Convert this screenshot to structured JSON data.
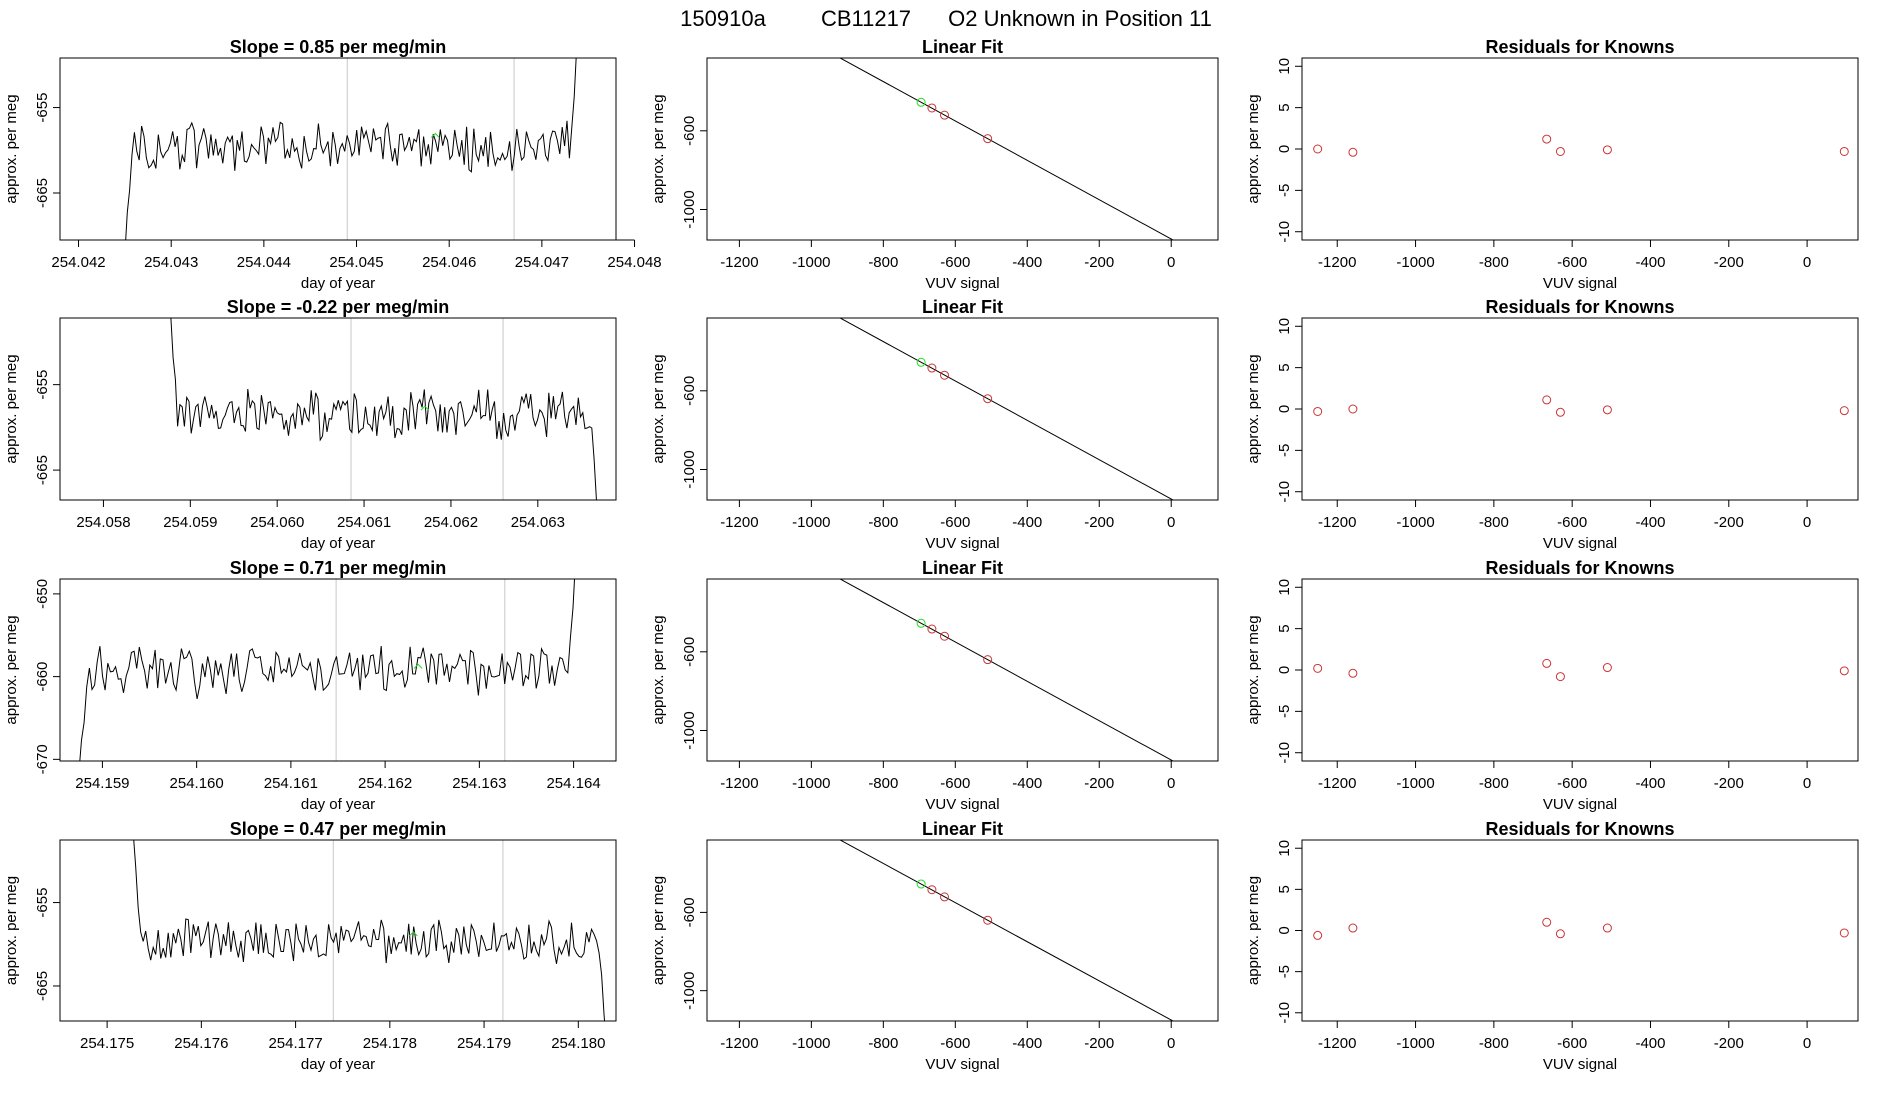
{
  "header": {
    "run_id": "150910a",
    "cylinder": "CB11217",
    "description": "O2 Unknown in Position  11"
  },
  "colors": {
    "trace": "#000000",
    "known_point": "#cc3333",
    "unknown_point": "#22dd22",
    "marker_line": "#c8c8c8"
  },
  "chart_data": [
    {
      "type": "line",
      "panel": "drift",
      "title": "Slope =  0.85  per meg/min",
      "xlabel": "day of year",
      "ylabel": "approx. per meg",
      "xlim": [
        254.0418,
        254.0478
      ],
      "ylim": [
        -670.5,
        -649.2
      ],
      "xticks": [
        "254.042",
        "254.043",
        "254.044",
        "254.045",
        "254.046",
        "254.047",
        "254.048"
      ],
      "yticks": [
        "-665",
        "-655"
      ],
      "marker_lines": [
        254.0449,
        254.0467
      ],
      "trace_start": 254.0425,
      "trace_end": 254.0474,
      "trace_level": -659.5,
      "trace_noise": 2.5,
      "trace_head": [
        -672,
        -668,
        -664,
        -661
      ],
      "trace_tail": [
        -658,
        -654,
        -648,
        -640
      ],
      "unknown_point": {
        "x": 254.04585,
        "y": -658.5
      }
    },
    {
      "type": "scatter",
      "panel": "linear-fit",
      "title": "Linear Fit",
      "xlabel": "VUV signal",
      "ylabel": "approx. per meg",
      "xlim": [
        -1290,
        130
      ],
      "ylim": [
        -1155,
        -230
      ],
      "xticks": [
        "-1200",
        "-1000",
        "-800",
        "-600",
        "-400",
        "-200",
        "0"
      ],
      "yticks": [
        "-1000",
        "-600"
      ],
      "fit_line": {
        "slope": -1.0,
        "intercept": -1150
      },
      "known_points": [
        {
          "x": -1250,
          "y": -1.5
        },
        {
          "x": -1160,
          "y": -1.0
        },
        {
          "x": -665,
          "y": 1.0
        },
        {
          "x": -630,
          "y": -0.5
        },
        {
          "x": -510,
          "y": 0.0
        },
        {
          "x": 95,
          "y": -0.5
        }
      ],
      "unknown_point": {
        "x": -695,
        "y": 0.0
      }
    },
    {
      "type": "scatter",
      "panel": "residuals",
      "title": "Residuals for Knowns",
      "xlabel": "VUV signal",
      "ylabel": "approx. per meg",
      "xlim": [
        -1290,
        130
      ],
      "ylim": [
        -11,
        11
      ],
      "xticks": [
        "-1200",
        "-1000",
        "-800",
        "-600",
        "-400",
        "-200",
        "0"
      ],
      "yticks": [
        "-10",
        "-5",
        "0",
        "5",
        "10"
      ],
      "points": [
        {
          "x": -1250,
          "y": 0.0
        },
        {
          "x": -1160,
          "y": -0.4
        },
        {
          "x": -665,
          "y": 1.2
        },
        {
          "x": -630,
          "y": -0.3
        },
        {
          "x": -510,
          "y": -0.1
        },
        {
          "x": 95,
          "y": -0.3
        }
      ]
    },
    {
      "type": "line",
      "panel": "drift",
      "title": "Slope =  -0.22  per meg/min",
      "xlabel": "day of year",
      "ylabel": "approx. per meg",
      "xlim": [
        254.0575,
        254.0639
      ],
      "ylim": [
        -668.5,
        -647.2
      ],
      "xticks": [
        "254.058",
        "254.059",
        "254.060",
        "254.061",
        "254.062",
        "254.063"
      ],
      "yticks": [
        "-665",
        "-655"
      ],
      "marker_lines": [
        254.06085,
        254.0626
      ],
      "trace_start": 254.05875,
      "trace_end": 254.0637,
      "trace_level": -658.5,
      "trace_noise": 2.4,
      "trace_head": [
        -640,
        -647,
        -652,
        -655
      ],
      "trace_tail": [
        -660,
        -664,
        -668,
        -671
      ],
      "unknown_point": {
        "x": 254.0617,
        "y": -658.0
      }
    },
    {
      "type": "scatter",
      "panel": "linear-fit",
      "title": "Linear Fit",
      "xlabel": "VUV signal",
      "ylabel": "approx. per meg",
      "xlim": [
        -1290,
        130
      ],
      "ylim": [
        -1155,
        -230
      ],
      "xticks": [
        "-1200",
        "-1000",
        "-800",
        "-600",
        "-400",
        "-200",
        "0"
      ],
      "yticks": [
        "-1000",
        "-600"
      ],
      "fit_line": {
        "slope": -1.0,
        "intercept": -1150
      },
      "known_points": [
        {
          "x": -1250,
          "y": -1.0
        },
        {
          "x": -1160,
          "y": -0.5
        },
        {
          "x": -665,
          "y": 0.8
        },
        {
          "x": -630,
          "y": -0.8
        },
        {
          "x": -510,
          "y": -0.2
        },
        {
          "x": 95,
          "y": -0.5
        }
      ],
      "unknown_point": {
        "x": -695,
        "y": 0.0
      }
    },
    {
      "type": "scatter",
      "panel": "residuals",
      "title": "Residuals for Knowns",
      "xlabel": "VUV signal",
      "ylabel": "approx. per meg",
      "xlim": [
        -1290,
        130
      ],
      "ylim": [
        -11,
        11
      ],
      "xticks": [
        "-1200",
        "-1000",
        "-800",
        "-600",
        "-400",
        "-200",
        "0"
      ],
      "yticks": [
        "-10",
        "-5",
        "0",
        "5",
        "10"
      ],
      "points": [
        {
          "x": -1250,
          "y": -0.3
        },
        {
          "x": -1160,
          "y": 0.0
        },
        {
          "x": -665,
          "y": 1.1
        },
        {
          "x": -630,
          "y": -0.4
        },
        {
          "x": -510,
          "y": -0.1
        },
        {
          "x": 95,
          "y": -0.2
        }
      ]
    },
    {
      "type": "line",
      "panel": "drift",
      "title": "Slope =  0.71  per meg/min",
      "xlabel": "day of year",
      "ylabel": "approx. per meg",
      "xlim": [
        254.15855,
        254.16445
      ],
      "ylim": [
        -670.2,
        -648.2
      ],
      "xticks": [
        "254.159",
        "254.160",
        "254.161",
        "254.162",
        "254.163",
        "254.164"
      ],
      "yticks": [
        "-670",
        "-660",
        "-650"
      ],
      "marker_lines": [
        254.16148,
        254.16327
      ],
      "trace_start": 254.15875,
      "trace_end": 254.16405,
      "trace_level": -659.5,
      "trace_noise": 2.6,
      "trace_head": [
        -672,
        -668,
        -665,
        -662
      ],
      "trace_tail": [
        -656,
        -652,
        -645,
        -638
      ],
      "unknown_point": {
        "x": 254.16235,
        "y": -659.0
      }
    },
    {
      "type": "scatter",
      "panel": "linear-fit",
      "title": "Linear Fit",
      "xlabel": "VUV signal",
      "ylabel": "approx. per meg",
      "xlim": [
        -1290,
        130
      ],
      "ylim": [
        -1155,
        -230
      ],
      "xticks": [
        "-1200",
        "-1000",
        "-800",
        "-600",
        "-400",
        "-200",
        "0"
      ],
      "yticks": [
        "-1000",
        "-600"
      ],
      "fit_line": {
        "slope": -1.0,
        "intercept": -1150
      },
      "known_points": [
        {
          "x": -1250,
          "y": -1.0
        },
        {
          "x": -1160,
          "y": -0.5
        },
        {
          "x": -665,
          "y": 0.8
        },
        {
          "x": -630,
          "y": -0.8
        },
        {
          "x": -510,
          "y": 0.2
        },
        {
          "x": 95,
          "y": -0.2
        }
      ],
      "unknown_point": {
        "x": -695,
        "y": 0.0
      }
    },
    {
      "type": "scatter",
      "panel": "residuals",
      "title": "Residuals for Knowns",
      "xlabel": "VUV signal",
      "ylabel": "approx. per meg",
      "xlim": [
        -1290,
        130
      ],
      "ylim": [
        -11,
        11
      ],
      "xticks": [
        "-1200",
        "-1000",
        "-800",
        "-600",
        "-400",
        "-200",
        "0"
      ],
      "yticks": [
        "-10",
        "-5",
        "0",
        "5",
        "10"
      ],
      "points": [
        {
          "x": -1250,
          "y": 0.2
        },
        {
          "x": -1160,
          "y": -0.4
        },
        {
          "x": -665,
          "y": 0.8
        },
        {
          "x": -630,
          "y": -0.8
        },
        {
          "x": -510,
          "y": 0.3
        },
        {
          "x": 95,
          "y": -0.1
        }
      ]
    },
    {
      "type": "line",
      "panel": "drift",
      "title": "Slope =  0.47  per meg/min",
      "xlabel": "day of year",
      "ylabel": "approx. per meg",
      "xlim": [
        254.1745,
        254.1804
      ],
      "ylim": [
        -669.2,
        -647.5
      ],
      "xticks": [
        "254.175",
        "254.176",
        "254.177",
        "254.178",
        "254.179",
        "254.180"
      ],
      "yticks": [
        "-665",
        "-655"
      ],
      "marker_lines": [
        254.1774,
        254.1792
      ],
      "trace_start": 254.17525,
      "trace_end": 254.1803,
      "trace_level": -659.5,
      "trace_noise": 2.4,
      "trace_head": [
        -640,
        -646,
        -651,
        -655
      ],
      "trace_tail": [
        -661,
        -664,
        -668,
        -672
      ],
      "unknown_point": {
        "x": 254.17825,
        "y": -659.0
      }
    },
    {
      "type": "scatter",
      "panel": "linear-fit",
      "title": "Linear Fit",
      "xlabel": "VUV signal",
      "ylabel": "approx. per meg",
      "xlim": [
        -1290,
        130
      ],
      "ylim": [
        -1155,
        -230
      ],
      "xticks": [
        "-1200",
        "-1000",
        "-800",
        "-600",
        "-400",
        "-200",
        "0"
      ],
      "yticks": [
        "-1000",
        "-600"
      ],
      "fit_line": {
        "slope": -1.0,
        "intercept": -1150
      },
      "known_points": [
        {
          "x": -1250,
          "y": -1.0
        },
        {
          "x": -1160,
          "y": -0.5
        },
        {
          "x": -665,
          "y": 0.8
        },
        {
          "x": -630,
          "y": -0.8
        },
        {
          "x": -510,
          "y": 0.0
        },
        {
          "x": 95,
          "y": -0.3
        }
      ],
      "unknown_point": {
        "x": -695,
        "y": 0.0
      }
    },
    {
      "type": "scatter",
      "panel": "residuals",
      "title": "Residuals for Knowns",
      "xlabel": "VUV signal",
      "ylabel": "approx. per meg",
      "xlim": [
        -1290,
        130
      ],
      "ylim": [
        -11,
        11
      ],
      "xticks": [
        "-1200",
        "-1000",
        "-800",
        "-600",
        "-400",
        "-200",
        "0"
      ],
      "yticks": [
        "-10",
        "-5",
        "0",
        "5",
        "10"
      ],
      "points": [
        {
          "x": -1250,
          "y": -0.6
        },
        {
          "x": -1160,
          "y": 0.3
        },
        {
          "x": -665,
          "y": 1.0
        },
        {
          "x": -630,
          "y": -0.4
        },
        {
          "x": -510,
          "y": 0.3
        },
        {
          "x": 95,
          "y": -0.3
        }
      ]
    }
  ]
}
